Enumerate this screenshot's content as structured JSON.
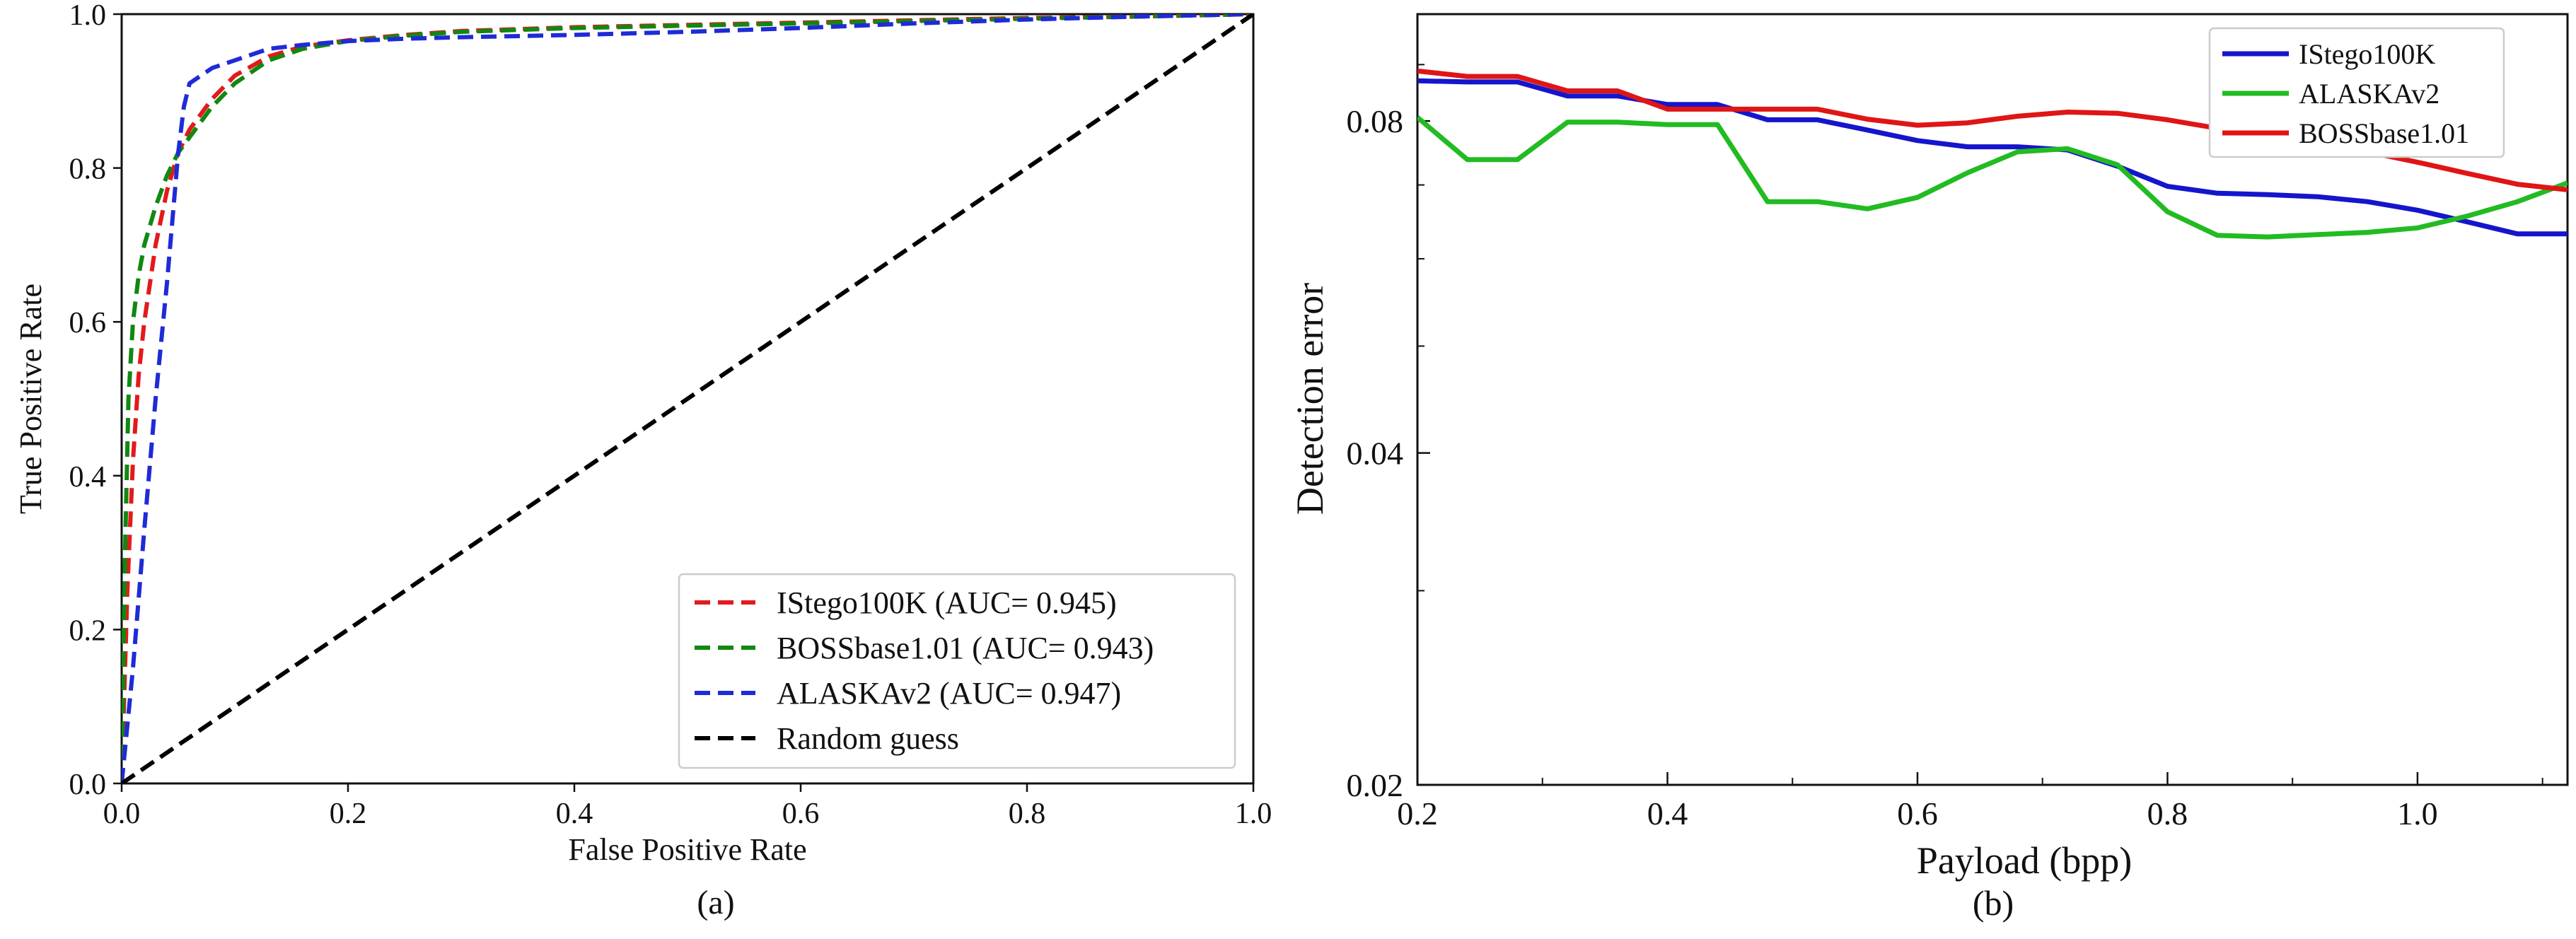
{
  "chart_data": [
    {
      "type": "line",
      "panel_label": "(a)",
      "xlabel": "False Positive Rate",
      "ylabel": "True Positive Rate",
      "xlim": [
        0,
        1
      ],
      "ylim": [
        0,
        1
      ],
      "xticks": [
        "0.0",
        "0.2",
        "0.4",
        "0.6",
        "0.8",
        "1.0"
      ],
      "yticks": [
        "0.0",
        "0.2",
        "0.4",
        "0.6",
        "0.8",
        "1.0"
      ],
      "legend_position": "lower-right",
      "series": [
        {
          "name": "IStego100K (AUC= 0.945)",
          "color": "#e31a1c",
          "style": "dashed",
          "x": [
            0,
            0.005,
            0.01,
            0.015,
            0.02,
            0.03,
            0.04,
            0.05,
            0.06,
            0.08,
            0.1,
            0.13,
            0.16,
            0.2,
            0.25,
            0.3,
            0.4,
            0.5,
            0.6,
            0.7,
            0.8,
            0.9,
            1.0
          ],
          "y": [
            0,
            0.25,
            0.42,
            0.53,
            0.6,
            0.7,
            0.77,
            0.82,
            0.85,
            0.89,
            0.92,
            0.945,
            0.958,
            0.966,
            0.973,
            0.978,
            0.983,
            0.986,
            0.989,
            0.992,
            0.995,
            0.997,
            1.0
          ]
        },
        {
          "name": "BOSSbase1.01 (AUC= 0.943)",
          "color": "#118811",
          "style": "dashed",
          "x": [
            0,
            0.003,
            0.006,
            0.01,
            0.015,
            0.02,
            0.03,
            0.04,
            0.05,
            0.06,
            0.08,
            0.1,
            0.13,
            0.16,
            0.2,
            0.25,
            0.3,
            0.4,
            0.5,
            0.6,
            0.7,
            0.8,
            0.9,
            1.0
          ],
          "y": [
            0,
            0.3,
            0.5,
            0.6,
            0.66,
            0.7,
            0.75,
            0.79,
            0.82,
            0.84,
            0.88,
            0.91,
            0.94,
            0.955,
            0.965,
            0.972,
            0.977,
            0.982,
            0.985,
            0.988,
            0.991,
            0.994,
            0.997,
            1.0
          ]
        },
        {
          "name": "ALASKAv2 (AUC= 0.947)",
          "color": "#1f2bd6",
          "style": "dashed",
          "x": [
            0,
            0.01,
            0.02,
            0.03,
            0.04,
            0.05,
            0.055,
            0.06,
            0.07,
            0.08,
            0.1,
            0.13,
            0.16,
            0.2,
            0.25,
            0.3,
            0.4,
            0.5,
            0.6,
            0.7,
            0.8,
            0.9,
            1.0
          ],
          "y": [
            0,
            0.15,
            0.33,
            0.5,
            0.65,
            0.82,
            0.88,
            0.91,
            0.92,
            0.93,
            0.94,
            0.955,
            0.96,
            0.965,
            0.968,
            0.97,
            0.973,
            0.977,
            0.982,
            0.988,
            0.993,
            0.997,
            1.0
          ]
        },
        {
          "name": "Random guess",
          "color": "#000000",
          "style": "dashed",
          "x": [
            0,
            1
          ],
          "y": [
            0,
            1
          ]
        }
      ]
    },
    {
      "type": "line",
      "panel_label": "(b)",
      "xlabel": "Payload (bpp)",
      "ylabel": "Detection error",
      "xlim": [
        0.2,
        1.12
      ],
      "ylim": [
        0.02,
        0.1
      ],
      "yscale": "log",
      "xticks": [
        "0.2",
        "0.4",
        "0.6",
        "0.8",
        "1.0"
      ],
      "yticks": [
        "0.02",
        "0.04",
        "0.08"
      ],
      "legend_position": "top-right",
      "x": [
        0.2,
        0.24,
        0.28,
        0.32,
        0.36,
        0.4,
        0.44,
        0.48,
        0.52,
        0.56,
        0.6,
        0.64,
        0.68,
        0.72,
        0.76,
        0.8,
        0.84,
        0.88,
        0.92,
        0.96,
        1.0,
        1.04,
        1.08,
        1.12
      ],
      "series": [
        {
          "name": "IStego100K",
          "color": "#1515cc",
          "values": [
            0.087,
            0.0868,
            0.0868,
            0.0843,
            0.0843,
            0.0828,
            0.0828,
            0.0802,
            0.0802,
            0.0785,
            0.0768,
            0.0758,
            0.0758,
            0.0753,
            0.0728,
            0.0698,
            0.0688,
            0.0686,
            0.0683,
            0.0676,
            0.0664,
            0.0648,
            0.0632,
            0.0632
          ]
        },
        {
          "name": "ALASKAv2",
          "color": "#22bb22",
          "values": [
            0.0806,
            0.0738,
            0.0738,
            0.0798,
            0.0798,
            0.0794,
            0.0794,
            0.0676,
            0.0676,
            0.0666,
            0.0682,
            0.0718,
            0.075,
            0.0755,
            0.073,
            0.0662,
            0.063,
            0.0628,
            0.0631,
            0.0634,
            0.064,
            0.0656,
            0.0676,
            0.0703
          ]
        },
        {
          "name": "BOSSbase1.01",
          "color": "#e01515",
          "values": [
            0.0888,
            0.0878,
            0.0878,
            0.0852,
            0.0852,
            0.082,
            0.082,
            0.082,
            0.082,
            0.0803,
            0.0793,
            0.0797,
            0.0808,
            0.0815,
            0.0813,
            0.0802,
            0.0788,
            0.0776,
            0.0764,
            0.075,
            0.0734,
            0.0717,
            0.0701,
            0.0693
          ]
        }
      ]
    }
  ]
}
